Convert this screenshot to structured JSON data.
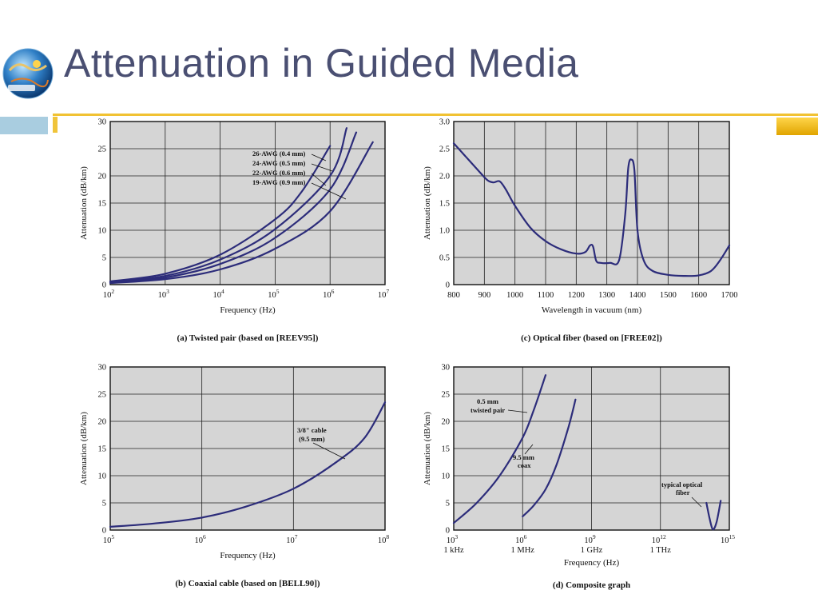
{
  "slide": {
    "title": "Attenuation in Guided Media",
    "logo_icon": "globe-network-logo-icon",
    "accent_color": "#f1c232",
    "side_color": "#a9cde0"
  },
  "chart_data": [
    {
      "id": "a",
      "type": "line",
      "caption": "(a) Twisted pair (based on [REEV95])",
      "xlabel": "Frequency (Hz)",
      "ylabel": "Attenuation (dB/km)",
      "x_scale": "log",
      "xlim": [
        100,
        10000000
      ],
      "ylim": [
        0,
        30
      ],
      "x_ticks": [
        {
          "v": 100,
          "b": "10",
          "e": "2"
        },
        {
          "v": 1000,
          "b": "10",
          "e": "3"
        },
        {
          "v": 10000,
          "b": "10",
          "e": "4"
        },
        {
          "v": 100000,
          "b": "10",
          "e": "5"
        },
        {
          "v": 1000000,
          "b": "10",
          "e": "6"
        },
        {
          "v": 10000000,
          "b": "10",
          "e": "7"
        }
      ],
      "y_ticks": [
        0,
        5,
        10,
        15,
        20,
        25,
        30
      ],
      "grid": true,
      "series": [
        {
          "name": "26-AWG (0.4 mm)",
          "x": [
            100,
            1000,
            10000,
            100000,
            300000,
            1000000
          ],
          "y": [
            0.6,
            2.0,
            5.5,
            12,
            17,
            25.5
          ]
        },
        {
          "name": "24-AWG (0.5 mm)",
          "x": [
            100,
            1000,
            10000,
            100000,
            1000000,
            2000000
          ],
          "y": [
            0.5,
            1.6,
            4.6,
            10.2,
            20,
            28.8
          ]
        },
        {
          "name": "22-AWG (0.6 mm)",
          "x": [
            100,
            1000,
            10000,
            100000,
            1000000,
            3000000
          ],
          "y": [
            0.4,
            1.3,
            3.8,
            8.6,
            17.5,
            28
          ]
        },
        {
          "name": "19-AWG (0.9 mm)",
          "x": [
            100,
            1000,
            10000,
            100000,
            1000000,
            6000000
          ],
          "y": [
            0.3,
            1.0,
            2.8,
            6.6,
            13.5,
            26.2
          ]
        }
      ]
    },
    {
      "id": "b",
      "type": "line",
      "caption": "(b) Coaxial cable (based on [BELL90])",
      "xlabel": "Frequency (Hz)",
      "ylabel": "Attenuation (dB/km)",
      "x_scale": "log",
      "xlim": [
        100000,
        100000000
      ],
      "ylim": [
        0,
        30
      ],
      "x_ticks": [
        {
          "v": 100000,
          "b": "10",
          "e": "5"
        },
        {
          "v": 1000000,
          "b": "10",
          "e": "6"
        },
        {
          "v": 10000000,
          "b": "10",
          "e": "7"
        },
        {
          "v": 100000000,
          "b": "10",
          "e": "8"
        }
      ],
      "y_ticks": [
        0,
        5,
        10,
        15,
        20,
        25,
        30
      ],
      "grid": true,
      "series": [
        {
          "name": "3/8\" cable (9.5 mm)",
          "x": [
            100000,
            300000,
            1000000,
            3000000,
            10000000,
            30000000,
            60000000,
            100000000
          ],
          "y": [
            0.6,
            1.2,
            2.3,
            4.3,
            7.6,
            12.6,
            17,
            23.5
          ]
        }
      ]
    },
    {
      "id": "c",
      "type": "line",
      "caption": "(c) Optical fiber (based on [FREE02])",
      "xlabel": "Wavelength in vacuum (nm)",
      "ylabel": "Attenuation (dB/km)",
      "x_scale": "linear",
      "xlim": [
        800,
        1700
      ],
      "ylim": [
        0,
        3.0
      ],
      "x_ticks": [
        {
          "v": 800,
          "t": "800"
        },
        {
          "v": 900,
          "t": "900"
        },
        {
          "v": 1000,
          "t": "1000"
        },
        {
          "v": 1100,
          "t": "1100"
        },
        {
          "v": 1200,
          "t": "1200"
        },
        {
          "v": 1300,
          "t": "1300"
        },
        {
          "v": 1400,
          "t": "1400"
        },
        {
          "v": 1500,
          "t": "1500"
        },
        {
          "v": 1600,
          "t": "1600"
        },
        {
          "v": 1700,
          "t": "1700"
        }
      ],
      "y_ticks": [
        0,
        0.5,
        1.0,
        1.5,
        2.0,
        2.5,
        3.0
      ],
      "y_tick_labels": [
        "0",
        "0.5",
        "1.0",
        "1.5",
        "2.0",
        "2.5",
        "3.0"
      ],
      "grid": true,
      "series": [
        {
          "name": "",
          "x": [
            800,
            840,
            880,
            910,
            930,
            950,
            970,
            1000,
            1050,
            1100,
            1150,
            1200,
            1230,
            1245,
            1255,
            1265,
            1280,
            1310,
            1340,
            1360,
            1370,
            1380,
            1390,
            1400,
            1420,
            1450,
            1500,
            1550,
            1600,
            1640,
            1670,
            1700
          ],
          "y": [
            2.6,
            2.35,
            2.1,
            1.92,
            1.88,
            1.9,
            1.75,
            1.45,
            1.05,
            0.8,
            0.65,
            0.57,
            0.6,
            0.72,
            0.7,
            0.44,
            0.4,
            0.4,
            0.45,
            1.3,
            2.15,
            2.3,
            2.1,
            1.0,
            0.45,
            0.25,
            0.18,
            0.16,
            0.17,
            0.25,
            0.45,
            0.72
          ]
        }
      ]
    },
    {
      "id": "d",
      "type": "line",
      "caption": "(d) Composite graph",
      "xlabel": "Frequency (Hz)",
      "ylabel": "Attenuation (dB/km)",
      "x_scale": "log",
      "xlim": [
        1000,
        1000000000000000
      ],
      "ylim": [
        0,
        30
      ],
      "x_ticks": [
        {
          "v": 1000,
          "b": "10",
          "e": "3",
          "sub": "1 kHz"
        },
        {
          "v": 1000000,
          "b": "10",
          "e": "6",
          "sub": "1 MHz"
        },
        {
          "v": 1000000000,
          "b": "10",
          "e": "9",
          "sub": "1 GHz"
        },
        {
          "v": 1000000000000,
          "b": "10",
          "e": "12",
          "sub": "1 THz"
        },
        {
          "v": 1000000000000000,
          "b": "10",
          "e": "15",
          "sub": ""
        }
      ],
      "y_ticks": [
        0,
        5,
        10,
        15,
        20,
        25,
        30
      ],
      "grid": true,
      "series": [
        {
          "name": "0.5 mm twisted pair",
          "x": [
            1000,
            10000,
            100000,
            1000000,
            3000000,
            10000000
          ],
          "y": [
            1.3,
            5,
            10,
            17,
            22,
            28.5
          ]
        },
        {
          "name": "9.5 mm coax",
          "x": [
            1000000,
            3000000,
            10000000,
            30000000,
            100000000,
            200000000
          ],
          "y": [
            2.5,
            4.5,
            7.5,
            12,
            19,
            24
          ]
        },
        {
          "name": "typical optical fiber",
          "x": [
            100000000000000,
            140000000000000,
            180000000000000,
            220000000000000,
            280000000000000,
            350000000000000,
            420000000000000
          ],
          "y": [
            5,
            2,
            0.3,
            0.3,
            1.5,
            3.5,
            5.4
          ]
        }
      ]
    }
  ],
  "annotations": {
    "a": [
      "26-AWG (0.4 mm)",
      "24-AWG (0.5 mm)",
      "22-AWG (0.6 mm)",
      "19-AWG (0.9 mm)"
    ],
    "b": [
      "3/8\" cable",
      "(9.5 mm)"
    ],
    "d_tp": [
      "0.5 mm",
      "twisted pair"
    ],
    "d_coax": [
      "9.5 mm",
      "coax"
    ],
    "d_fiber": [
      "typical optical",
      "fiber"
    ]
  }
}
